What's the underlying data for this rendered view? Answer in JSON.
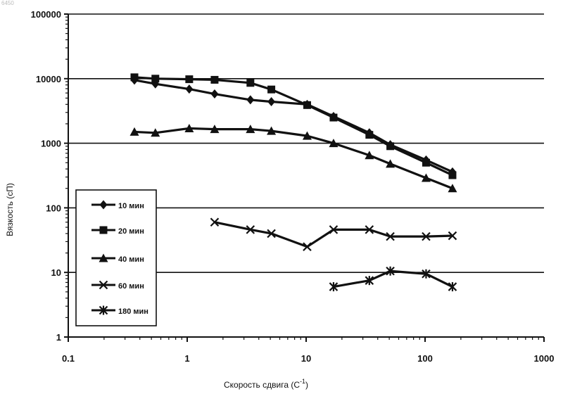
{
  "chart_data": {
    "type": "line",
    "title": "",
    "corner_label": "6450",
    "xlabel": "Скорость сдвига (С",
    "xlabel_sup": "-1",
    "xlabel_close": ")",
    "ylabel": "Вязкость (сП)",
    "xscale": "log",
    "yscale": "log",
    "xlim": [
      0.1,
      1000
    ],
    "ylim": [
      1,
      100000
    ],
    "x_ticks": [
      0.1,
      1,
      10,
      100,
      1000
    ],
    "x_tick_labels": [
      "0.1",
      "1",
      "10",
      "100",
      "1000"
    ],
    "y_ticks": [
      1,
      10,
      100,
      1000,
      10000,
      100000
    ],
    "y_tick_labels": [
      "1",
      "10",
      "100",
      "1000",
      "10000",
      "100000"
    ],
    "grid": "horizontal major",
    "legend_position": "left-middle",
    "series": [
      {
        "name": "10 мин",
        "marker": "diamond",
        "x": [
          0.36,
          0.54,
          1.04,
          1.7,
          3.4,
          5.1,
          10.2,
          17,
          34,
          51,
          102,
          170
        ],
        "y": [
          9500,
          8300,
          6900,
          5800,
          4700,
          4400,
          4000,
          2600,
          1450,
          950,
          550,
          360
        ]
      },
      {
        "name": "20 мин",
        "marker": "square",
        "x": [
          0.36,
          0.54,
          1.04,
          1.7,
          3.4,
          5.1,
          10.2,
          17,
          34,
          51,
          102,
          170
        ],
        "y": [
          10500,
          10000,
          9800,
          9600,
          8600,
          6800,
          3900,
          2500,
          1350,
          900,
          500,
          320
        ]
      },
      {
        "name": "40 мин",
        "marker": "triangle",
        "x": [
          0.36,
          0.54,
          1.04,
          1.7,
          3.4,
          5.1,
          10.2,
          17,
          34,
          51,
          102,
          170
        ],
        "y": [
          1500,
          1450,
          1700,
          1650,
          1650,
          1550,
          1300,
          1000,
          650,
          480,
          290,
          200
        ]
      },
      {
        "name": "60 мин",
        "marker": "x",
        "x": [
          1.7,
          3.4,
          5.1,
          10.2,
          17,
          34,
          51,
          102,
          170
        ],
        "y": [
          60,
          46,
          40,
          25,
          46,
          46,
          36,
          36,
          37
        ]
      },
      {
        "name": "180 мин",
        "marker": "star",
        "x": [
          17,
          34,
          51,
          102,
          170
        ],
        "y": [
          6,
          7.5,
          10.5,
          9.5,
          6
        ]
      }
    ]
  }
}
